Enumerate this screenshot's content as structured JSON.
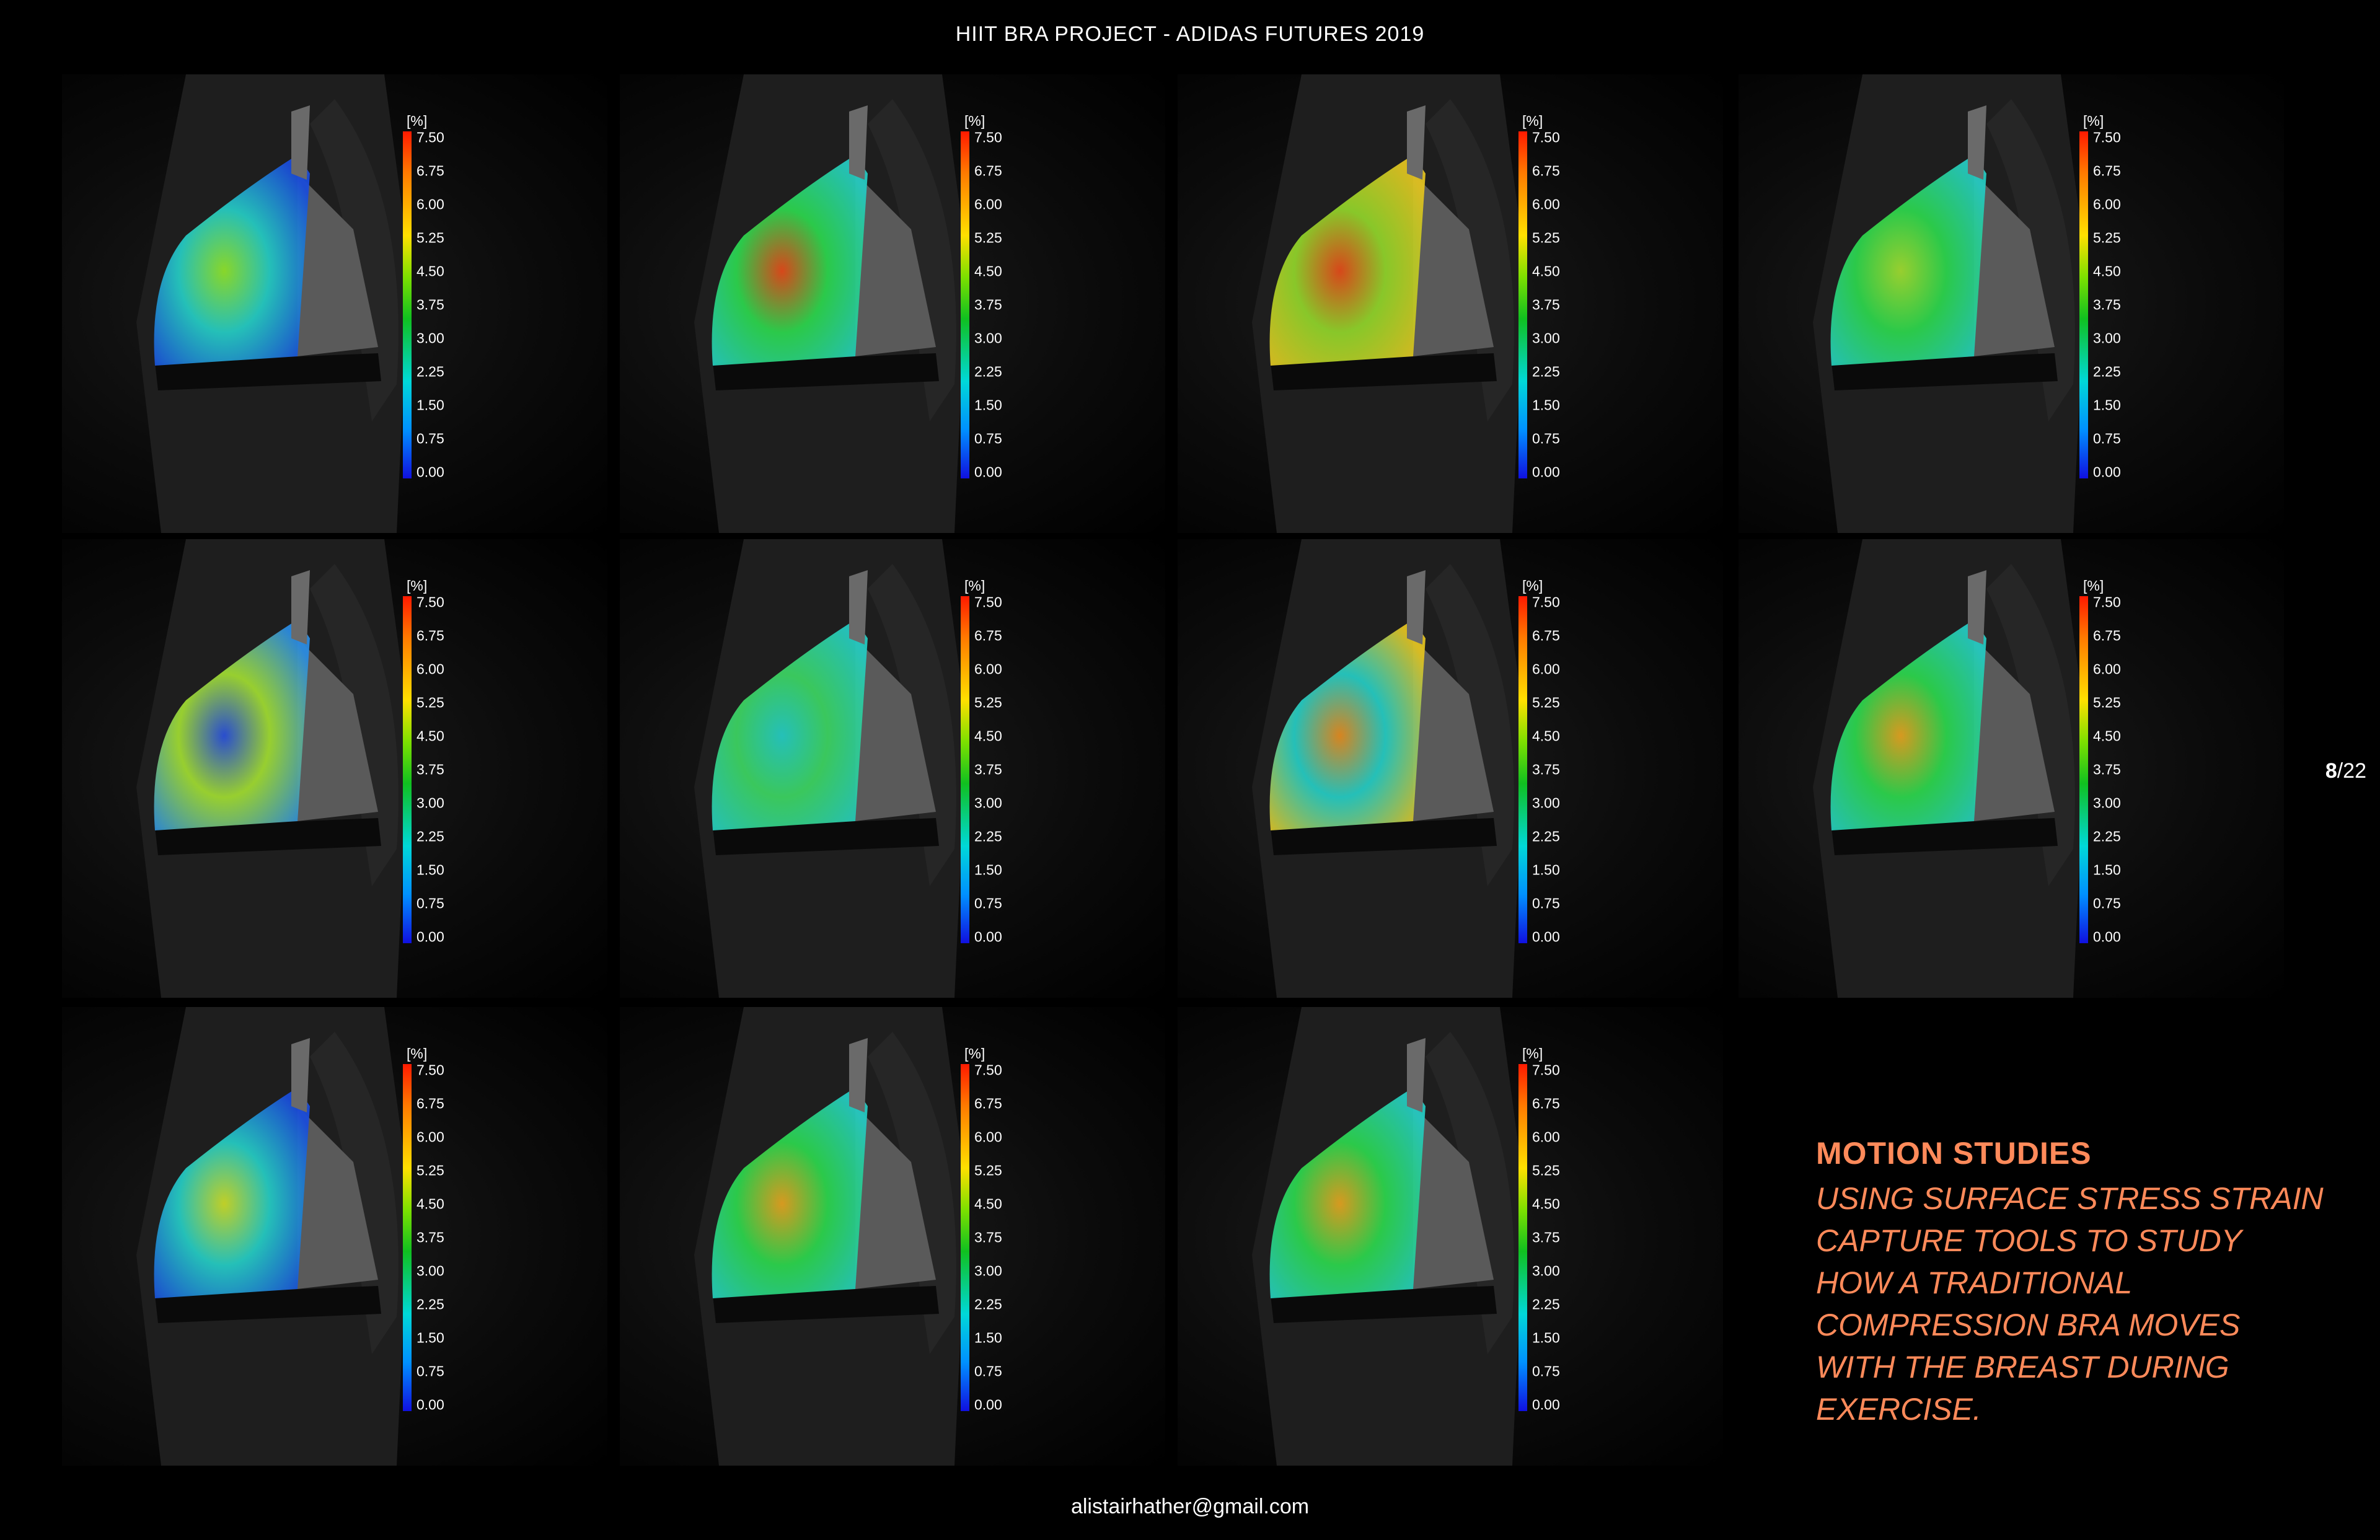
{
  "header": {
    "title": "HIIT BRA PROJECT - ADIDAS FUTURES 2019"
  },
  "legend": {
    "unit": "[%]",
    "ticks": [
      "7.50",
      "6.75",
      "6.00",
      "5.25",
      "4.50",
      "3.75",
      "3.00",
      "2.25",
      "1.50",
      "0.75",
      "0.00"
    ]
  },
  "studies_count": 11,
  "motion_studies": {
    "title": "MOTION STUDIES",
    "body": "USING SURFACE STRESS STRAIN CAPTURE TOOLS TO STUDY HOW A TRADITIONAL COMPRESSION BRA MOVES WITH THE BREAST DURING EXERCISE."
  },
  "pagination": {
    "current": "8",
    "total": "/22"
  },
  "footer": {
    "email": "alistairhather@gmail.com"
  },
  "colors": {
    "accent": "#ff8a5a",
    "background": "#000000"
  }
}
